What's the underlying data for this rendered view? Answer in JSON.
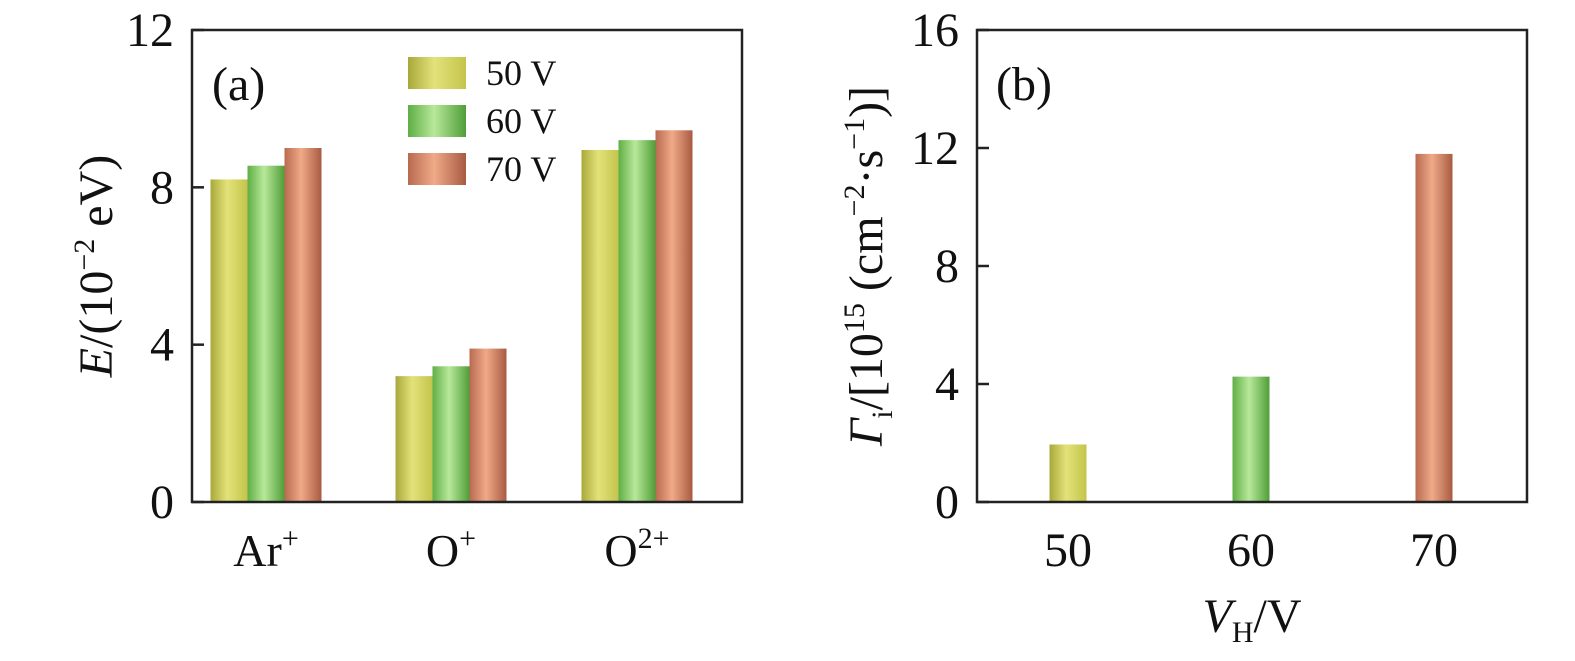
{
  "chart_data": [
    {
      "type": "bar",
      "panel_label": "(a)",
      "ylabel": {
        "var": "E",
        "rest": "/(10",
        "sup": "−2",
        "unit": " eV)"
      },
      "xlabel": "",
      "ylim": [
        0,
        12
      ],
      "yticks": [
        "0",
        "4",
        "8",
        "12"
      ],
      "categories": [
        {
          "base": "Ar",
          "sup": "+"
        },
        {
          "base": "O",
          "sup": "+"
        },
        {
          "base": "O",
          "sup": "2+"
        }
      ],
      "series": [
        {
          "name": "50 V",
          "values": [
            8.2,
            3.2,
            8.95
          ]
        },
        {
          "name": "60 V",
          "values": [
            8.55,
            3.45,
            9.2
          ]
        },
        {
          "name": "70 V",
          "values": [
            9.0,
            3.9,
            9.45
          ]
        }
      ],
      "legend": "top-center",
      "grid": false
    },
    {
      "type": "bar",
      "panel_label": "(b)",
      "ylabel": {
        "var": "Γ",
        "sub": "i",
        "rest": "/[10",
        "sup": "15",
        "mid": " (cm",
        "sup2": "−2",
        "mid2": "·s",
        "sup3": "−1",
        "end": ")]"
      },
      "xlabel": {
        "var": "V",
        "sub": "H",
        "rest": "/V"
      },
      "ylim": [
        0,
        16
      ],
      "yticks": [
        "0",
        "4",
        "8",
        "12",
        "16"
      ],
      "categories": [
        "50",
        "60",
        "70"
      ],
      "values": [
        1.95,
        4.25,
        11.8
      ],
      "legend": "none",
      "grid": false
    }
  ],
  "colors": {
    "series_50": [
      "#a8a83a",
      "#e2e27a",
      "#c4c44c"
    ],
    "series_60": [
      "#5fae45",
      "#b8e89a",
      "#4f9e38"
    ],
    "series_70": [
      "#b86a50",
      "#f0aa88",
      "#a85a42"
    ]
  }
}
